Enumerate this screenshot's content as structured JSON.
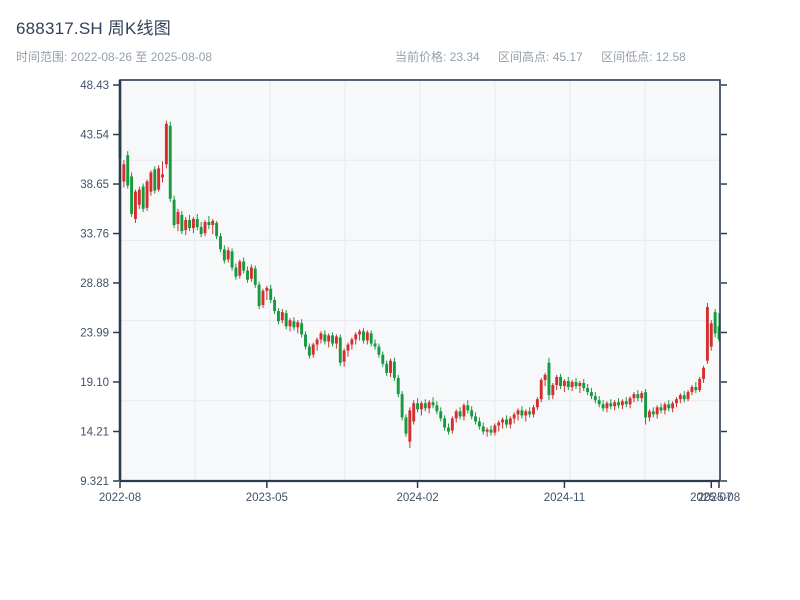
{
  "header": {
    "title": "688317.SH 周K线图",
    "time_range_label": "时间范围: 2022-08-26 至 2025-08-08",
    "current_price_label": "当前价格: 23.34",
    "range_high_label": "区间高点: 45.17",
    "range_low_label": "区间低点: 12.58"
  },
  "chart_data": {
    "type": "candlestick",
    "symbol": "688317.SH",
    "interval": "weekly",
    "title": "688317.SH 周K线图",
    "start_date": "2022-08-26",
    "end_date": "2025-08-08",
    "current_price": 23.34,
    "range_high": 45.17,
    "range_low": 12.58,
    "up_color": "#d32f2f",
    "down_color": "#169a3e",
    "axis_color": "#2c3b52",
    "grid_color": "#e5e8ec",
    "plot_bg_color": "#f6f8fa",
    "tick_label_color": "#42526b",
    "grid": "on",
    "y_ticks": [
      "48.43",
      "43.54",
      "38.65",
      "33.76",
      "28.88",
      "23.99",
      "19.10",
      "14.21",
      "9.321"
    ],
    "x_tick_labels": [
      "2022-08",
      "2023-05",
      "2024-02",
      "2024-11",
      "2025-07",
      "2025-08"
    ],
    "x_tick_weeks": [
      0,
      38,
      77,
      115,
      153,
      155
    ],
    "ohlc_note": "estimated weekly OHLC read from chart pixels",
    "candles_ohlc": [
      [
        45.0,
        45.17,
        40.6,
        41.2
      ],
      [
        38.9,
        41.0,
        38.3,
        40.6
      ],
      [
        41.5,
        41.9,
        38.2,
        38.5
      ],
      [
        39.4,
        39.8,
        35.4,
        35.7
      ],
      [
        35.2,
        38.1,
        34.8,
        37.9
      ],
      [
        36.6,
        38.4,
        36.2,
        38.1
      ],
      [
        38.4,
        38.7,
        35.9,
        36.2
      ],
      [
        36.3,
        39.1,
        36.0,
        38.9
      ],
      [
        37.9,
        40.0,
        37.5,
        39.8
      ],
      [
        40.1,
        40.4,
        37.7,
        38.0
      ],
      [
        38.1,
        40.5,
        37.9,
        40.2
      ],
      [
        39.3,
        40.9,
        38.8,
        39.6
      ],
      [
        40.6,
        44.9,
        40.2,
        44.6
      ],
      [
        44.4,
        44.8,
        36.9,
        37.2
      ],
      [
        37.1,
        37.5,
        34.3,
        34.6
      ],
      [
        34.7,
        36.2,
        34.0,
        35.9
      ],
      [
        35.6,
        36.0,
        33.7,
        34.0
      ],
      [
        34.1,
        35.4,
        33.6,
        35.1
      ],
      [
        35.1,
        35.6,
        34.0,
        34.3
      ],
      [
        34.3,
        35.4,
        33.8,
        35.2
      ],
      [
        35.2,
        35.7,
        34.1,
        34.4
      ],
      [
        34.4,
        34.9,
        33.4,
        33.7
      ],
      [
        33.8,
        35.1,
        33.5,
        34.9
      ],
      [
        34.9,
        35.5,
        34.2,
        34.6
      ],
      [
        34.6,
        35.2,
        33.7,
        35.0
      ],
      [
        34.8,
        35.0,
        33.2,
        33.5
      ],
      [
        33.5,
        33.8,
        31.9,
        32.2
      ],
      [
        32.2,
        32.6,
        30.8,
        31.1
      ],
      [
        31.2,
        32.4,
        30.9,
        32.1
      ],
      [
        32.0,
        32.3,
        30.1,
        30.4
      ],
      [
        30.4,
        30.8,
        29.2,
        29.5
      ],
      [
        29.6,
        31.2,
        29.3,
        31.0
      ],
      [
        31.0,
        31.4,
        29.8,
        30.1
      ],
      [
        30.1,
        30.5,
        28.9,
        29.2
      ],
      [
        29.3,
        30.7,
        29.0,
        30.4
      ],
      [
        30.3,
        30.6,
        28.4,
        28.7
      ],
      [
        28.7,
        29.0,
        26.3,
        26.6
      ],
      [
        26.7,
        28.3,
        26.4,
        28.1
      ],
      [
        28.1,
        28.6,
        27.2,
        28.4
      ],
      [
        28.3,
        28.7,
        26.9,
        27.2
      ],
      [
        27.2,
        27.5,
        25.8,
        26.1
      ],
      [
        26.1,
        26.4,
        24.8,
        25.1
      ],
      [
        25.2,
        26.3,
        24.9,
        26.0
      ],
      [
        25.9,
        26.2,
        24.3,
        24.6
      ],
      [
        24.6,
        25.4,
        24.1,
        25.2
      ],
      [
        25.1,
        25.5,
        24.2,
        24.5
      ],
      [
        24.5,
        25.2,
        23.9,
        25.0
      ],
      [
        24.9,
        25.3,
        23.5,
        23.8
      ],
      [
        23.8,
        24.1,
        22.3,
        22.6
      ],
      [
        22.6,
        22.9,
        21.4,
        21.7
      ],
      [
        21.8,
        23.0,
        21.5,
        22.8
      ],
      [
        22.8,
        23.5,
        22.2,
        23.3
      ],
      [
        23.3,
        24.1,
        22.9,
        23.9
      ],
      [
        23.8,
        24.2,
        22.8,
        23.1
      ],
      [
        23.1,
        23.9,
        22.5,
        23.7
      ],
      [
        23.7,
        24.0,
        22.6,
        22.9
      ],
      [
        22.9,
        23.8,
        22.4,
        23.6
      ],
      [
        23.5,
        23.8,
        20.7,
        21.0
      ],
      [
        21.1,
        22.4,
        20.6,
        22.2
      ],
      [
        22.2,
        23.0,
        21.6,
        22.8
      ],
      [
        22.8,
        23.5,
        22.3,
        23.3
      ],
      [
        23.3,
        24.0,
        22.8,
        23.8
      ],
      [
        23.8,
        24.3,
        23.2,
        24.1
      ],
      [
        24.1,
        24.4,
        22.9,
        23.2
      ],
      [
        23.2,
        24.2,
        22.8,
        24.0
      ],
      [
        23.9,
        24.2,
        22.6,
        22.9
      ],
      [
        22.9,
        23.3,
        22.3,
        22.6
      ],
      [
        22.6,
        22.9,
        21.5,
        21.8
      ],
      [
        21.8,
        22.1,
        20.6,
        20.9
      ],
      [
        20.9,
        21.2,
        19.7,
        20.0
      ],
      [
        20.0,
        21.4,
        19.6,
        21.2
      ],
      [
        21.1,
        21.5,
        19.2,
        19.5
      ],
      [
        19.5,
        19.8,
        17.6,
        17.9
      ],
      [
        17.9,
        18.2,
        15.3,
        15.6
      ],
      [
        15.6,
        15.9,
        13.7,
        14.0
      ],
      [
        13.2,
        16.6,
        12.58,
        16.3
      ],
      [
        15.2,
        17.3,
        14.9,
        17.0
      ],
      [
        17.0,
        17.5,
        16.1,
        16.4
      ],
      [
        16.4,
        17.2,
        15.8,
        17.0
      ],
      [
        17.0,
        17.4,
        16.2,
        16.5
      ],
      [
        16.5,
        17.3,
        16.0,
        17.1
      ],
      [
        17.1,
        17.6,
        16.5,
        16.8
      ],
      [
        16.8,
        17.2,
        15.9,
        16.2
      ],
      [
        16.2,
        16.6,
        15.2,
        15.5
      ],
      [
        15.5,
        15.8,
        14.3,
        14.6
      ],
      [
        14.6,
        15.0,
        13.9,
        14.2
      ],
      [
        14.3,
        15.7,
        14.0,
        15.5
      ],
      [
        15.5,
        16.4,
        15.1,
        16.2
      ],
      [
        16.2,
        16.6,
        15.4,
        15.7
      ],
      [
        15.7,
        17.0,
        15.3,
        16.8
      ],
      [
        16.8,
        17.3,
        16.0,
        16.3
      ],
      [
        16.3,
        16.7,
        15.4,
        15.7
      ],
      [
        15.7,
        16.1,
        14.9,
        15.2
      ],
      [
        15.2,
        15.6,
        14.4,
        14.7
      ],
      [
        14.7,
        15.1,
        13.9,
        14.2
      ],
      [
        14.2,
        14.6,
        13.7,
        14.4
      ],
      [
        14.4,
        14.8,
        13.8,
        14.1
      ],
      [
        14.1,
        15.0,
        13.8,
        14.8
      ],
      [
        14.8,
        15.3,
        14.2,
        15.1
      ],
      [
        15.1,
        15.6,
        14.5,
        15.4
      ],
      [
        15.4,
        15.8,
        14.6,
        14.9
      ],
      [
        14.9,
        15.7,
        14.5,
        15.5
      ],
      [
        15.5,
        16.1,
        15.0,
        15.9
      ],
      [
        15.9,
        16.5,
        15.3,
        16.3
      ],
      [
        16.3,
        16.7,
        15.5,
        15.8
      ],
      [
        15.8,
        16.4,
        15.2,
        16.2
      ],
      [
        16.2,
        16.6,
        15.6,
        15.9
      ],
      [
        15.9,
        16.8,
        15.6,
        16.6
      ],
      [
        16.6,
        17.6,
        16.3,
        17.4
      ],
      [
        17.4,
        19.5,
        17.1,
        19.3
      ],
      [
        19.3,
        20.0,
        18.7,
        19.8
      ],
      [
        21.0,
        21.5,
        17.3,
        17.8
      ],
      [
        17.8,
        19.0,
        17.4,
        18.8
      ],
      [
        18.8,
        19.8,
        18.3,
        19.6
      ],
      [
        19.6,
        19.9,
        18.4,
        18.7
      ],
      [
        18.7,
        19.4,
        18.1,
        19.2
      ],
      [
        19.2,
        19.6,
        18.3,
        18.6
      ],
      [
        18.6,
        19.3,
        18.2,
        19.1
      ],
      [
        19.1,
        19.5,
        18.4,
        18.7
      ],
      [
        18.7,
        19.2,
        18.0,
        19.0
      ],
      [
        19.0,
        19.4,
        18.2,
        18.5
      ],
      [
        18.5,
        18.9,
        17.8,
        18.1
      ],
      [
        18.1,
        18.5,
        17.4,
        17.7
      ],
      [
        17.7,
        18.1,
        17.0,
        17.3
      ],
      [
        17.3,
        17.7,
        16.6,
        16.9
      ],
      [
        16.9,
        17.3,
        16.2,
        16.5
      ],
      [
        16.5,
        17.2,
        16.1,
        17.0
      ],
      [
        17.0,
        17.4,
        16.4,
        16.7
      ],
      [
        16.7,
        17.3,
        16.3,
        17.1
      ],
      [
        17.1,
        17.5,
        16.5,
        16.8
      ],
      [
        16.8,
        17.4,
        16.4,
        17.2
      ],
      [
        17.2,
        17.6,
        16.6,
        16.9
      ],
      [
        16.9,
        17.7,
        16.5,
        17.5
      ],
      [
        17.5,
        18.1,
        17.1,
        17.9
      ],
      [
        17.9,
        18.3,
        17.2,
        17.5
      ],
      [
        17.5,
        18.2,
        17.1,
        18.0
      ],
      [
        18.1,
        18.4,
        14.9,
        15.6
      ],
      [
        15.6,
        16.4,
        15.2,
        16.2
      ],
      [
        16.2,
        16.6,
        15.6,
        15.9
      ],
      [
        15.9,
        16.8,
        15.5,
        16.6
      ],
      [
        16.6,
        17.0,
        16.0,
        16.3
      ],
      [
        16.3,
        17.1,
        15.9,
        16.9
      ],
      [
        16.9,
        17.3,
        16.2,
        16.5
      ],
      [
        16.5,
        17.2,
        16.1,
        17.0
      ],
      [
        17.0,
        17.6,
        16.6,
        17.4
      ],
      [
        17.4,
        18.0,
        17.0,
        17.8
      ],
      [
        17.8,
        18.2,
        17.1,
        17.4
      ],
      [
        17.4,
        18.3,
        17.2,
        18.1
      ],
      [
        18.1,
        18.8,
        17.8,
        18.6
      ],
      [
        18.6,
        19.1,
        18.0,
        18.3
      ],
      [
        18.3,
        19.6,
        18.1,
        19.4
      ],
      [
        19.4,
        20.7,
        19.0,
        20.5
      ],
      [
        21.2,
        26.9,
        20.9,
        26.5
      ],
      [
        22.6,
        25.2,
        22.2,
        24.9
      ],
      [
        26.0,
        26.3,
        23.5,
        23.9
      ],
      [
        24.6,
        25.9,
        23.1,
        23.34
      ]
    ]
  }
}
